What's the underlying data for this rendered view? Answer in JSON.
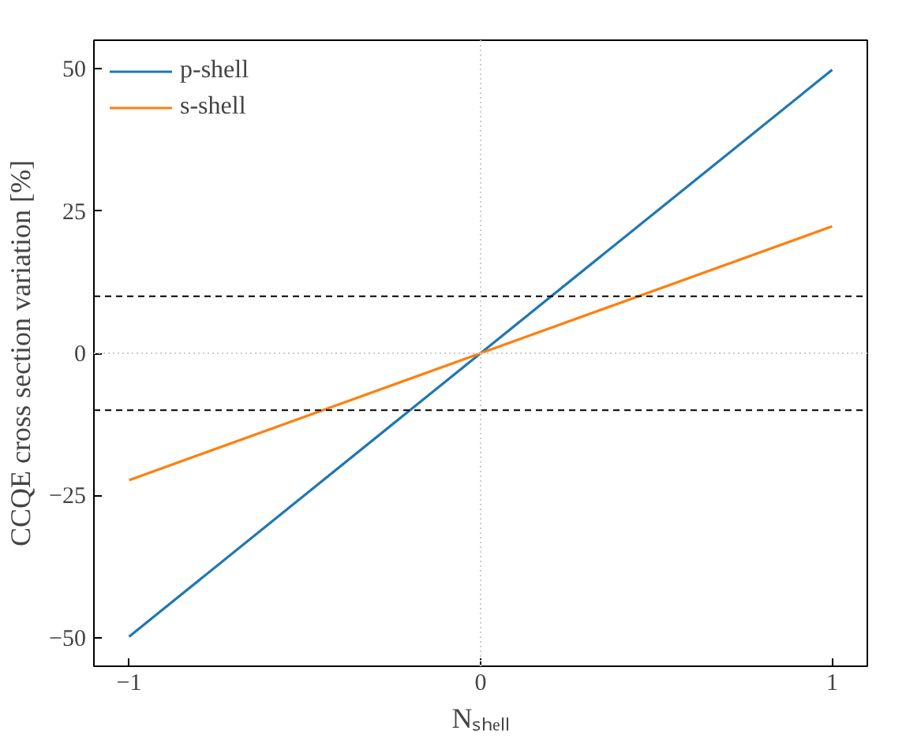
{
  "chart_data": {
    "type": "line",
    "xlabel": "Nₛₕₑₗₗ",
    "ylabel": "CCQE cross section variation [%]",
    "x": [
      -1,
      0,
      1
    ],
    "series": [
      {
        "name": "p-shell",
        "color": "#1f77b4",
        "values": [
          -49.8,
          0,
          49.8
        ]
      },
      {
        "name": "s-shell",
        "color": "#ff7f0e",
        "values": [
          -22.3,
          0,
          22.3
        ]
      }
    ],
    "xlim": [
      -1.1,
      1.1
    ],
    "ylim": [
      -55,
      55
    ],
    "xticks": [
      {
        "value": -1,
        "label": "−1"
      },
      0,
      1
    ],
    "yticks": [
      {
        "value": -50,
        "label": "−50"
      },
      {
        "value": -25,
        "label": "−25"
      },
      0,
      25,
      50
    ],
    "ref_lines": [
      {
        "axis": "y",
        "value": 10,
        "color": "#000000",
        "line_style": "dashed"
      },
      {
        "axis": "y",
        "value": -10,
        "color": "#000000",
        "line_style": "dashed"
      },
      {
        "axis": "x",
        "value": 0,
        "color": "#cccccc",
        "line_style": "dotted"
      },
      {
        "axis": "y",
        "value": 0,
        "color": "#cccccc",
        "line_style": "dotted"
      }
    ],
    "legend": "top left",
    "line_style": "solid",
    "marker": "none"
  }
}
